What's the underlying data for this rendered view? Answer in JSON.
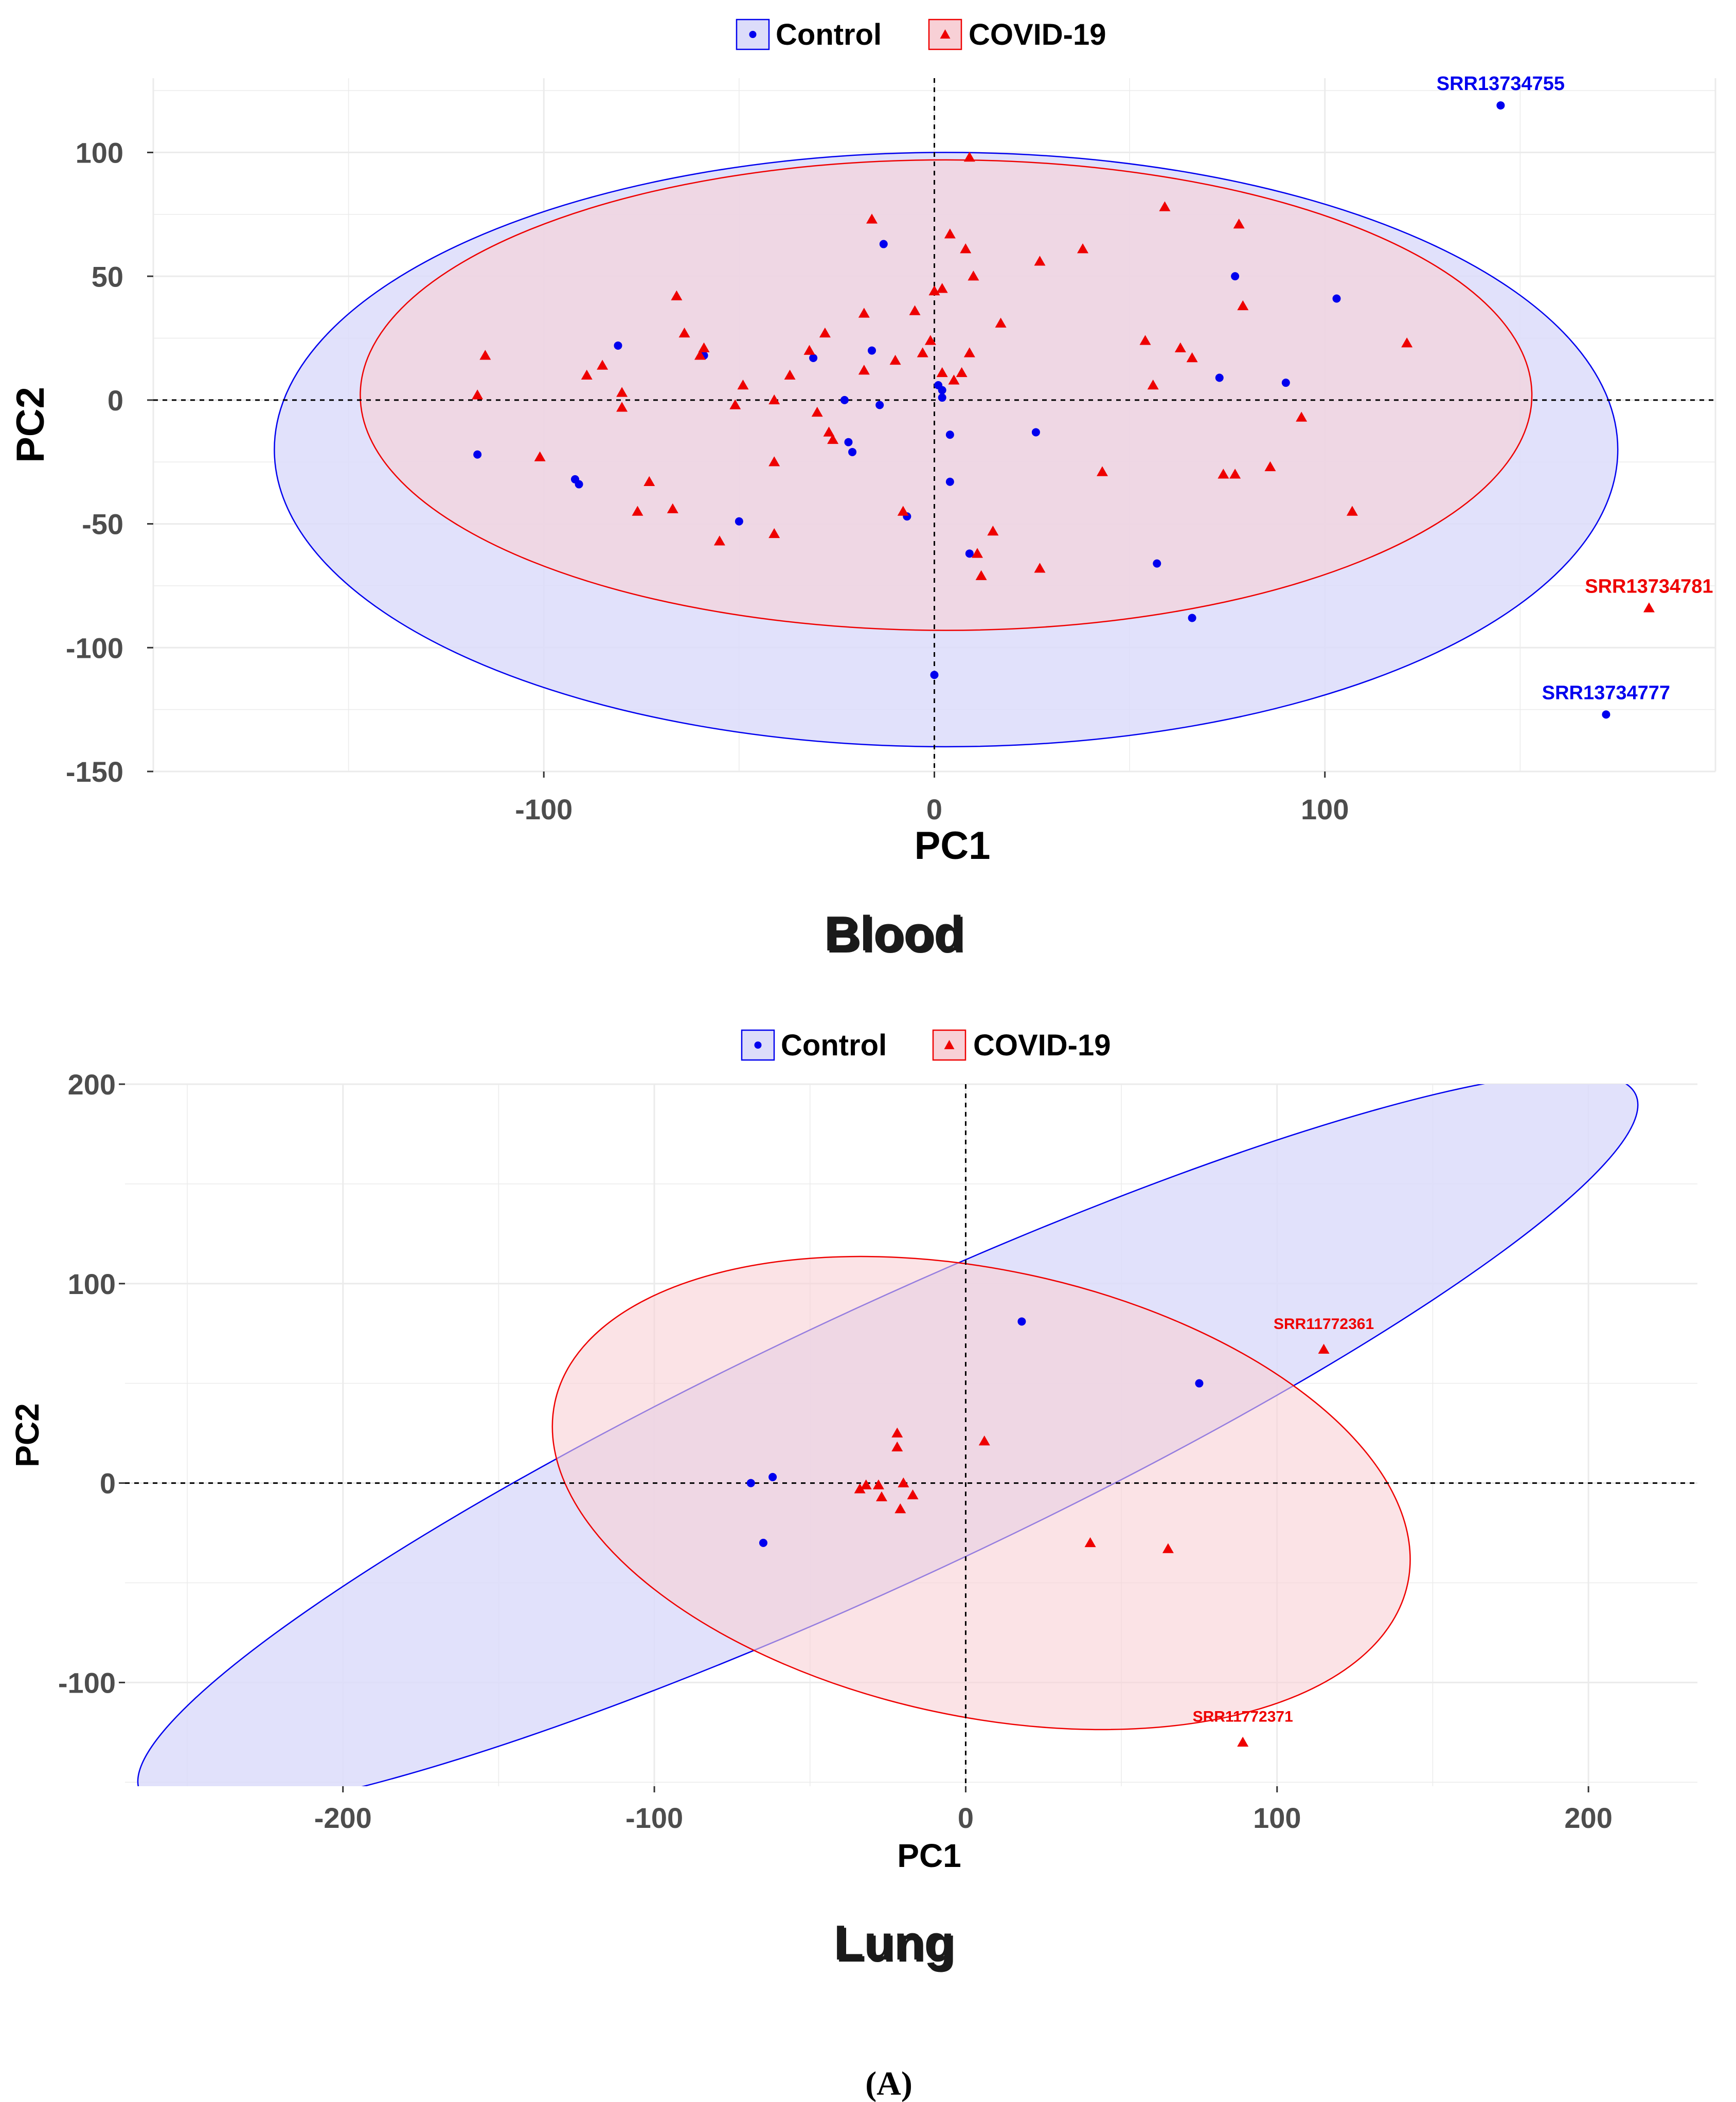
{
  "figure": {
    "caption": "(A)",
    "colors": {
      "control": "#0000ee",
      "covid": "#ee0000",
      "control_fill": "#dcdcfa",
      "covid_fill": "#f8d0d6"
    }
  },
  "chart_data": [
    {
      "type": "scatter",
      "panel_title": "Blood",
      "xlabel": "PC1",
      "ylabel": "PC2",
      "xlim": [
        -200,
        200
      ],
      "ylim": [
        -150,
        130
      ],
      "xticks": [
        -100,
        0,
        100
      ],
      "yticks": [
        -150,
        -100,
        -50,
        0,
        50,
        100
      ],
      "reference_lines": {
        "x": 0,
        "y": 0
      },
      "legend": {
        "placement": "top-center",
        "entries": [
          "Control",
          "COVID-19"
        ]
      },
      "ellipses": [
        {
          "group": "Control",
          "center": [
            3,
            -20
          ],
          "semi_axes": [
            172,
            120
          ],
          "rotation_deg": 0
        },
        {
          "group": "COVID-19",
          "center": [
            3,
            2
          ],
          "semi_axes": [
            150,
            95
          ],
          "rotation_deg": 0
        }
      ],
      "series": [
        {
          "name": "Control",
          "marker": "circle",
          "points": [
            [
              -117,
              -22
            ],
            [
              -81,
              22
            ],
            [
              -92,
              -32
            ],
            [
              -91,
              -34
            ],
            [
              -59,
              18
            ],
            [
              -50,
              -49
            ],
            [
              -31,
              17
            ],
            [
              -23,
              0
            ],
            [
              -22,
              -17
            ],
            [
              -21,
              -21
            ],
            [
              -16,
              20
            ],
            [
              -14,
              -2
            ],
            [
              -13,
              63
            ],
            [
              -7,
              -47
            ],
            [
              0,
              -111
            ],
            [
              1,
              6
            ],
            [
              2,
              4
            ],
            [
              2,
              1
            ],
            [
              4,
              -14
            ],
            [
              4,
              -33
            ],
            [
              9,
              -62
            ],
            [
              26,
              -13
            ],
            [
              57,
              -66
            ],
            [
              66,
              -88
            ],
            [
              73,
              9
            ],
            [
              77,
              50
            ],
            [
              90,
              7
            ],
            [
              103,
              41
            ],
            [
              145,
              119
            ],
            [
              172,
              -127
            ]
          ]
        },
        {
          "name": "COVID-19",
          "marker": "triangle",
          "points": [
            [
              -117,
              2
            ],
            [
              -115,
              18
            ],
            [
              -101,
              -23
            ],
            [
              -89,
              10
            ],
            [
              -85,
              14
            ],
            [
              -80,
              3
            ],
            [
              -80,
              -3
            ],
            [
              -76,
              -45
            ],
            [
              -73,
              -33
            ],
            [
              -67,
              -44
            ],
            [
              -66,
              42
            ],
            [
              -64,
              27
            ],
            [
              -60,
              18
            ],
            [
              -59,
              21
            ],
            [
              -55,
              -57
            ],
            [
              -51,
              -2
            ],
            [
              -49,
              6
            ],
            [
              -41,
              0
            ],
            [
              -37,
              10
            ],
            [
              -41,
              -25
            ],
            [
              -41,
              -54
            ],
            [
              -32,
              20
            ],
            [
              -30,
              -5
            ],
            [
              -28,
              27
            ],
            [
              -27,
              -13
            ],
            [
              -26,
              -16
            ],
            [
              -18,
              35
            ],
            [
              -18,
              12
            ],
            [
              -16,
              73
            ],
            [
              -10,
              16
            ],
            [
              -8,
              -45
            ],
            [
              -5,
              36
            ],
            [
              -3,
              19
            ],
            [
              -1,
              24
            ],
            [
              0,
              44
            ],
            [
              2,
              45
            ],
            [
              2,
              11
            ],
            [
              4,
              67
            ],
            [
              5,
              8
            ],
            [
              7,
              11
            ],
            [
              8,
              61
            ],
            [
              9,
              98
            ],
            [
              9,
              19
            ],
            [
              10,
              50
            ],
            [
              11,
              -62
            ],
            [
              12,
              -71
            ],
            [
              15,
              -53
            ],
            [
              17,
              31
            ],
            [
              27,
              56
            ],
            [
              27,
              -68
            ],
            [
              38,
              61
            ],
            [
              43,
              -29
            ],
            [
              54,
              24
            ],
            [
              56,
              6
            ],
            [
              59,
              78
            ],
            [
              63,
              21
            ],
            [
              66,
              17
            ],
            [
              74,
              -30
            ],
            [
              77,
              -30
            ],
            [
              78,
              71
            ],
            [
              79,
              38
            ],
            [
              86,
              -27
            ],
            [
              94,
              -7
            ],
            [
              107,
              -45
            ],
            [
              121,
              23
            ],
            [
              183,
              -84
            ]
          ]
        }
      ],
      "point_labels": [
        {
          "text": "SRR13734755",
          "group": "Control",
          "x": 145,
          "y": 119
        },
        {
          "text": "SRR13734781",
          "group": "COVID-19",
          "x": 183,
          "y": -84
        },
        {
          "text": "SRR13734777",
          "group": "Control",
          "x": 172,
          "y": -127
        }
      ]
    },
    {
      "type": "scatter",
      "panel_title": "Lung",
      "xlabel": "PC1",
      "ylabel": "PC2",
      "xlim": [
        -270,
        235
      ],
      "ylim": [
        -152,
        200
      ],
      "xticks": [
        -200,
        -100,
        0,
        100,
        200
      ],
      "yticks": [
        -100,
        0,
        100,
        200
      ],
      "reference_lines": {
        "x": 0,
        "y": 0
      },
      "legend": {
        "placement": "top-center",
        "entries": [
          "Control",
          "COVID-19"
        ]
      },
      "ellipses": [
        {
          "group": "Control",
          "center": [
            -25,
            20
          ],
          "semi_axes": [
            265,
            68
          ],
          "rotation_deg": 25
        },
        {
          "group": "COVID-19",
          "center": [
            5,
            -5
          ],
          "semi_axes": [
            140,
            112
          ],
          "rotation_deg": -12
        }
      ],
      "series": [
        {
          "name": "Control",
          "marker": "circle",
          "points": [
            [
              -69,
              0
            ],
            [
              -62,
              3
            ],
            [
              -65,
              -30
            ],
            [
              18,
              81
            ],
            [
              75,
              50
            ]
          ]
        },
        {
          "name": "COVID-19",
          "marker": "triangle",
          "points": [
            [
              -34,
              -3
            ],
            [
              -32,
              -1
            ],
            [
              -28,
              -1
            ],
            [
              -27,
              -7
            ],
            [
              -22,
              25
            ],
            [
              -22,
              18
            ],
            [
              -21,
              -13
            ],
            [
              -20,
              0
            ],
            [
              -17,
              -6
            ],
            [
              6,
              21
            ],
            [
              40,
              -30
            ],
            [
              65,
              -33
            ],
            [
              115,
              67
            ],
            [
              89,
              -130
            ]
          ]
        }
      ],
      "point_labels": [
        {
          "text": "SRR11772361",
          "group": "COVID-19",
          "x": 115,
          "y": 67
        },
        {
          "text": "SRR11772371",
          "group": "COVID-19",
          "x": 89,
          "y": -130
        }
      ]
    }
  ]
}
